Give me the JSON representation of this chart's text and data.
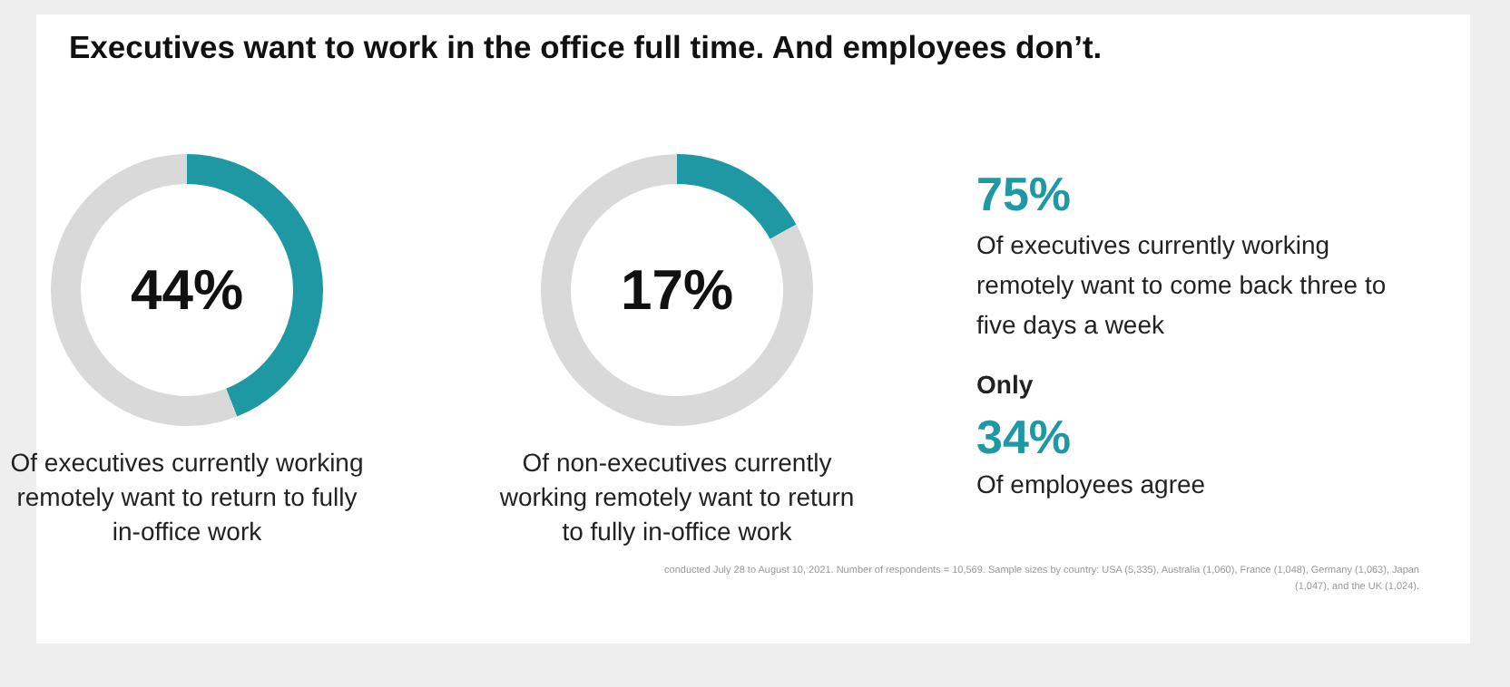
{
  "chart_data": [
    {
      "type": "donut",
      "title": "Executives want to work in the office full time. And employees don’t.",
      "categories": [
        null,
        null
      ],
      "values": [
        44,
        56
      ],
      "colors": [
        "#1e98a3",
        "#d9d9d9"
      ],
      "value_labels": [
        "44%",
        null
      ],
      "annotations": [
        "Of executives currently working remotely want to return to fully in-office work"
      ]
    },
    {
      "type": "donut",
      "categories": [
        null,
        null
      ],
      "values": [
        17,
        83
      ],
      "colors": [
        "#1e98a3",
        "#d9d9d9"
      ],
      "value_labels": [
        "17%",
        null
      ],
      "annotations": [
        "Of non-executives currently working remotely want to return to fully in-office work"
      ]
    },
    {
      "type": "other",
      "annotations": [
        "75%",
        "Of executives currently working remotely want to come back three to five days a week",
        "Only",
        "34%",
        "Of employees agree",
        "conducted July 28 to August 10, 2021. Number of respondents = 10,569. Sample sizes by country: USA (5,335), Australia (1,060), France (1,048), Germany (1,063), Japan (1,047), and the UK (1,024)."
      ]
    }
  ]
}
